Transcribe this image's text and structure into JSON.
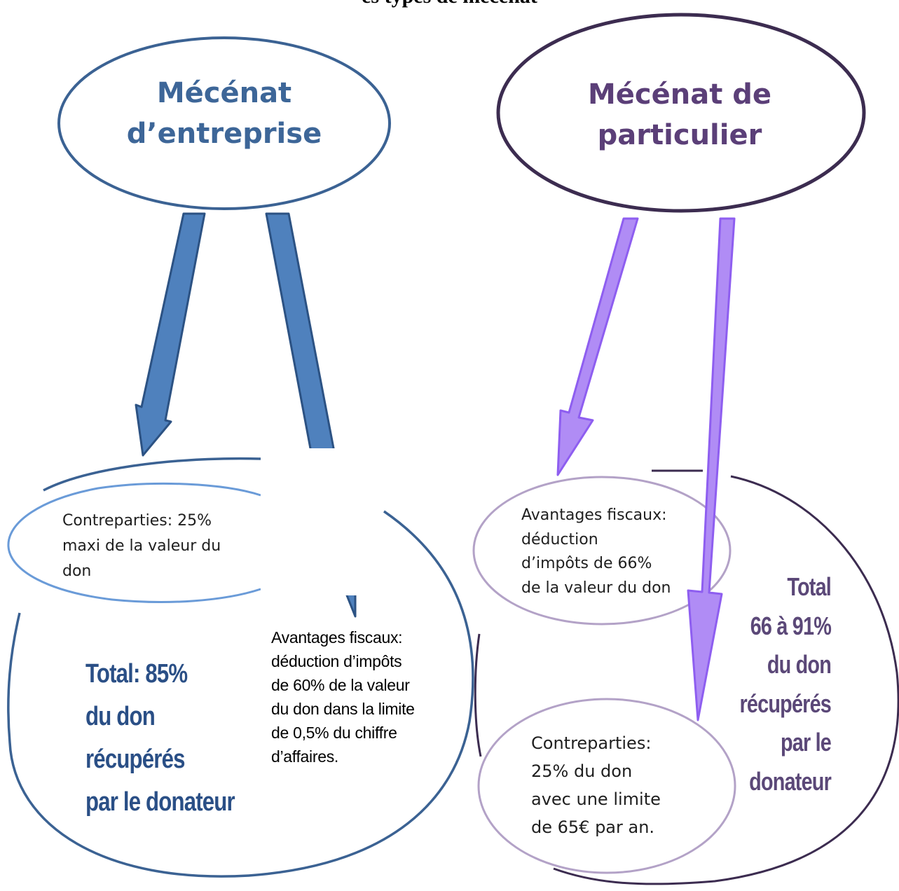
{
  "title": "es types de mécénat",
  "left": {
    "heading": "Mécénat\nd’entreprise",
    "counterparts": "Contreparties: 25%\nmaxi de la valeur du\ndon",
    "fiscal": "Avantages fiscaux:\ndéduction d’impôts\nde  60% de la valeur\ndu don dans la limite\nde 0,5% du chiffre\nd’affaires.",
    "total": "Total: 85%\ndu don\nrécupérés\npar le donateur"
  },
  "right": {
    "heading": "Mécénat de\nparticulier",
    "fiscal": "Avantages fiscaux:\ndéduction\nd’impôts de 66%\nde la valeur du don",
    "counterparts": "Contreparties:\n25% du don\navec une limite\nde 65€ par an.",
    "total": "Total\n66 à 91%\ndu don\nrécupérés\npar le\ndonateur"
  },
  "colors": {
    "left_ellipse_stroke": "#3b6293",
    "left_arrow_fill": "#4f81bd",
    "left_arrow_stroke": "#2c5283",
    "left_small_ellipse_stroke": "#6a9bd8",
    "left_heading": "#3d6698",
    "left_total": "#2a4f86",
    "right_ellipse_stroke": "#3c2c50",
    "right_arrow_fill": "#b08cf5",
    "right_arrow_stroke": "#8e5ef0",
    "right_small_ellipse_stroke": "#b3a2c7",
    "right_heading": "#5b3f78",
    "right_total": "#5b4878"
  }
}
